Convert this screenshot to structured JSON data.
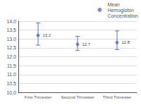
{
  "chart_data": {
    "type": "scatter",
    "categories": [
      "First Trimester",
      "Second Trimester",
      "Third Trimester"
    ],
    "series": [
      {
        "name": "Mean\nHemoglobin\nConcentration",
        "values": [
          13.2,
          12.7,
          12.8
        ],
        "error_lower": [
          0.55,
          0.35,
          0.4
        ],
        "error_upper": [
          0.7,
          0.45,
          0.65
        ],
        "marker": "o"
      }
    ],
    "ylim": [
      10,
      14
    ],
    "yticks": [
      {
        "value": 10,
        "label": "10.0"
      },
      10.5,
      {
        "value": 11,
        "label": "11.0"
      },
      11.5,
      {
        "value": 12,
        "label": "12.0"
      },
      12.5,
      {
        "value": 13,
        "label": "13.0"
      },
      13.5,
      {
        "value": 14,
        "label": "14.0"
      }
    ],
    "grid": true,
    "legend": "upper right",
    "data_labels": true
  }
}
